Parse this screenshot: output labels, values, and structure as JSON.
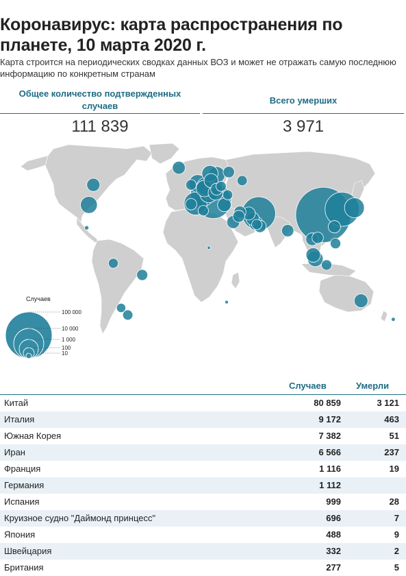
{
  "title": "Коронавирус: карта распространения по планете, 10 марта 2020 г.",
  "subtitle": "Карта строится на периодических сводках данных ВОЗ и может не отражать самую последнюю информацию по конкретным странам",
  "stats": {
    "cases_label": "Общее количество подтвержденных случаев",
    "cases_value": "111 839",
    "deaths_label": "Всего умерших",
    "deaths_value": "3 971"
  },
  "colors": {
    "accent": "#1d6c84",
    "bubble": "#1f7f9a",
    "land": "#cfcfcf",
    "row_alt": "#e9f1f6"
  },
  "legend": {
    "title": "Случаев",
    "items": [
      "100 000",
      "10 000",
      "1 000",
      "100",
      "10"
    ]
  },
  "map_points": [
    {
      "place": "Китай",
      "lat": 32,
      "lon": 111,
      "cases": 80859
    },
    {
      "place": "Южная Корея",
      "lat": 36,
      "lon": 128,
      "cases": 7382
    },
    {
      "place": "Япония",
      "lat": 37,
      "lon": 139,
      "cases": 488
    },
    {
      "place": "Иран",
      "lat": 33,
      "lon": 53,
      "cases": 6566
    },
    {
      "place": "Италия",
      "lat": 42,
      "lon": 12,
      "cases": 9172
    },
    {
      "place": "Франция",
      "lat": 46,
      "lon": 2,
      "cases": 1116
    },
    {
      "place": "Германия",
      "lat": 51,
      "lon": 10,
      "cases": 1112
    },
    {
      "place": "Испания",
      "lat": 40,
      "lon": -4,
      "cases": 999
    },
    {
      "place": "Швейцария",
      "lat": 47,
      "lon": 8,
      "cases": 332
    },
    {
      "place": "Британия",
      "lat": 54,
      "lon": -2,
      "cases": 277
    },
    {
      "place": "Норвегия",
      "lat": 61,
      "lon": 9,
      "cases": 176
    },
    {
      "place": "Швеция",
      "lat": 60,
      "lon": 15,
      "cases": 203
    },
    {
      "place": "Нидерланды",
      "lat": 52,
      "lon": 5,
      "cases": 265
    },
    {
      "place": "Бельгия",
      "lat": 50.5,
      "lon": 4,
      "cases": 200
    },
    {
      "place": "Австрия",
      "lat": 47.5,
      "lon": 14,
      "cases": 112
    },
    {
      "place": "Дания",
      "lat": 56,
      "lon": 10,
      "cases": 90
    },
    {
      "place": "Греция",
      "lat": 39,
      "lon": 22,
      "cases": 73
    },
    {
      "place": "Финляндия",
      "lat": 62,
      "lon": 26,
      "cases": 30
    },
    {
      "place": "Россия",
      "lat": 56,
      "lon": 38,
      "cases": 17
    },
    {
      "place": "Чехия",
      "lat": 50,
      "lon": 15,
      "cases": 38
    },
    {
      "place": "Португалия",
      "lat": 39.5,
      "lon": -8,
      "cases": 30
    },
    {
      "place": "Исландия",
      "lat": 65,
      "lon": -19,
      "cases": 55
    },
    {
      "place": "Ирландия",
      "lat": 53,
      "lon": -8,
      "cases": 21
    },
    {
      "place": "Польша",
      "lat": 52,
      "lon": 19,
      "cases": 17
    },
    {
      "place": "Румыния",
      "lat": 46,
      "lon": 25,
      "cases": 15
    },
    {
      "place": "Израиль",
      "lat": 31,
      "lon": 35,
      "cases": 39
    },
    {
      "place": "Египет",
      "lat": 27,
      "lon": 30,
      "cases": 55
    },
    {
      "place": "Ирак",
      "lat": 33,
      "lon": 44,
      "cases": 60
    },
    {
      "place": "Кувейт",
      "lat": 29.3,
      "lon": 47.5,
      "cases": 64
    },
    {
      "place": "Бахрейн",
      "lat": 26,
      "lon": 50.5,
      "cases": 79
    },
    {
      "place": "Катар",
      "lat": 25.3,
      "lon": 51.2,
      "cases": 18
    },
    {
      "place": "ОАЭ",
      "lat": 24,
      "lon": 54,
      "cases": 45
    },
    {
      "place": "Ливан",
      "lat": 34,
      "lon": 36,
      "cases": 41
    },
    {
      "place": "Алжир",
      "lat": 35,
      "lon": 3,
      "cases": 20
    },
    {
      "place": "Индия",
      "lat": 21,
      "lon": 79,
      "cases": 43
    },
    {
      "place": "Таиланд",
      "lat": 15,
      "lon": 101,
      "cases": 50
    },
    {
      "place": "Малайзия",
      "lat": 4,
      "lon": 102,
      "cases": 99
    },
    {
      "place": "Сингапур",
      "lat": 1.3,
      "lon": 103.8,
      "cases": 150
    },
    {
      "place": "Вьетнам",
      "lat": 16,
      "lon": 106,
      "cases": 30
    },
    {
      "place": "Филиппины",
      "lat": 12,
      "lon": 122,
      "cases": 20
    },
    {
      "place": "Тайвань",
      "lat": 23.7,
      "lon": 121,
      "cases": 45
    },
    {
      "place": "Индонезия",
      "lat": -3,
      "lon": 114,
      "cases": 19
    },
    {
      "place": "Австралия",
      "lat": -28,
      "lon": 145,
      "cases": 77
    },
    {
      "place": "Канада",
      "lat": 53,
      "lon": -96,
      "cases": 62
    },
    {
      "place": "США",
      "lat": 39,
      "lon": -100,
      "cases": 213
    },
    {
      "place": "Мексика",
      "lat": 23,
      "lon": -102,
      "cases": 7
    },
    {
      "place": "Эквадор",
      "lat": -1.8,
      "lon": -78,
      "cases": 15
    },
    {
      "place": "Бразилия",
      "lat": -10,
      "lon": -52,
      "cases": 25
    },
    {
      "place": "Чили",
      "lat": -33,
      "lon": -71,
      "cases": 10
    },
    {
      "place": "Аргентина",
      "lat": -38,
      "lon": -65,
      "cases": 17
    },
    {
      "place": "Нигерия",
      "lat": 9,
      "lon": 8,
      "cases": 2
    },
    {
      "place": "ЮАР",
      "lat": -29,
      "lon": 24,
      "cases": 3
    },
    {
      "place": "Новая Зеландия",
      "lat": -41,
      "lon": 174,
      "cases": 5
    }
  ],
  "table": {
    "col_cases": "Случаев",
    "col_deaths": "Умерли",
    "rows": [
      {
        "name": "Китай",
        "cases": "80 859",
        "deaths": "3 121"
      },
      {
        "name": "Италия",
        "cases": "9 172",
        "deaths": "463"
      },
      {
        "name": "Южная Корея",
        "cases": "7 382",
        "deaths": "51"
      },
      {
        "name": "Иран",
        "cases": "6 566",
        "deaths": "237"
      },
      {
        "name": "Франция",
        "cases": "1 116",
        "deaths": "19"
      },
      {
        "name": "Германия",
        "cases": "1 112",
        "deaths": ""
      },
      {
        "name": "Испания",
        "cases": "999",
        "deaths": "28"
      },
      {
        "name": "Круизное судно \"Даймонд принцесс\"",
        "cases": "696",
        "deaths": "7"
      },
      {
        "name": "Япония",
        "cases": "488",
        "deaths": "9"
      },
      {
        "name": "Швейцария",
        "cases": "332",
        "deaths": "2"
      },
      {
        "name": "Британия",
        "cases": "277",
        "deaths": "5"
      }
    ]
  }
}
